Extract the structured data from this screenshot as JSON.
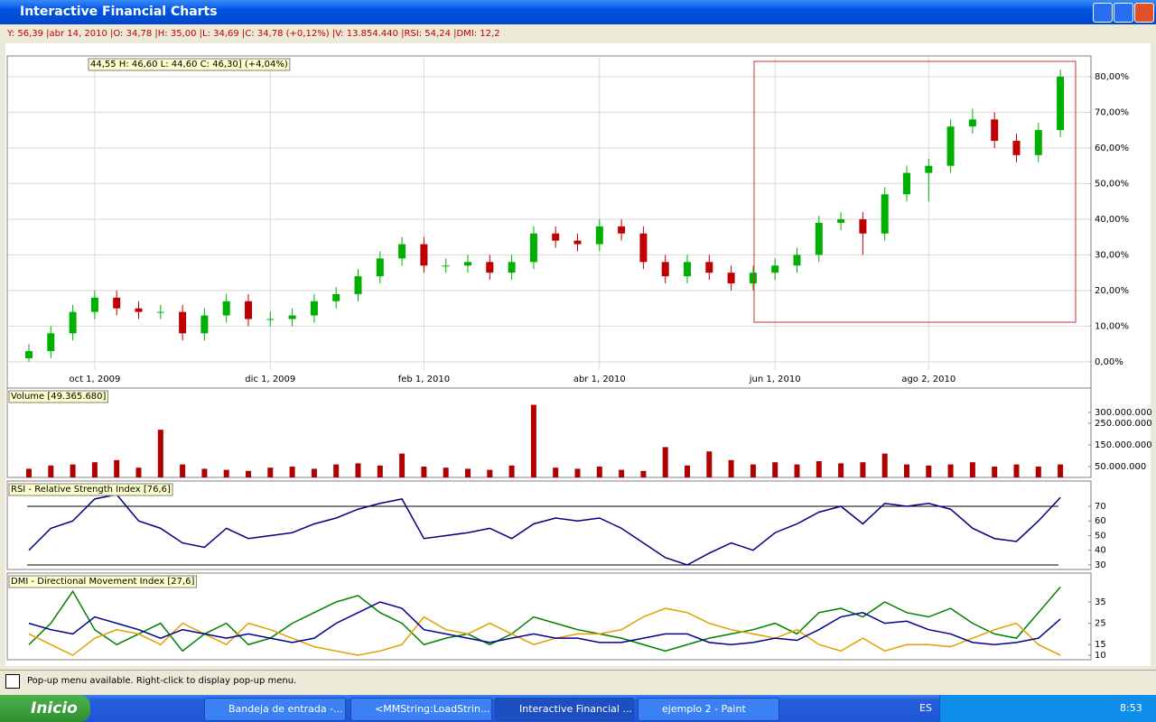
{
  "window": {
    "title": "Interactive Financial Charts",
    "info_line": "Y: 56,39 |abr 14, 2010 |O: 34,78 |H: 35,00 |L: 34,69 |C: 34,78 (+0,12%) |V: 13.854.440 |RSI: 54,24 |DMI: 12,2",
    "status_text": "Pop-up menu available. Right-click to display pop-up menu."
  },
  "taskbar": {
    "start": "Inicio",
    "tasks": [
      "Bandeja de entrada -...",
      "<MMString:LoadStrin...",
      "Interactive Financial ...",
      "ejemplo 2 - Paint"
    ],
    "language": "ES",
    "clock": "8:53"
  },
  "chart_data": [
    {
      "type": "candlestick",
      "title": "44,55  H: 46,60  L: 44,60  C: 46,30] (+4,04%)",
      "categories": [
        null,
        null,
        null,
        "oct 1, 2009",
        null,
        null,
        null,
        null,
        null,
        null,
        null,
        "dic 1, 2009",
        null,
        null,
        null,
        null,
        null,
        null,
        "feb 1, 2010",
        null,
        null,
        null,
        null,
        null,
        null,
        null,
        "abr 1, 2010",
        null,
        null,
        null,
        null,
        null,
        null,
        null,
        "jun 1, 2010",
        null,
        null,
        null,
        null,
        null,
        null,
        "ago 2, 2010",
        null,
        null,
        null,
        null,
        null,
        null
      ],
      "open": [
        1,
        3,
        8,
        14,
        18,
        15,
        14,
        14,
        8,
        13,
        17,
        12,
        12,
        13,
        17,
        19,
        24,
        29,
        33,
        27,
        27,
        28,
        25,
        28,
        36,
        34,
        33,
        38,
        36,
        28,
        24,
        28,
        25,
        22,
        25,
        27,
        30,
        39,
        40,
        36,
        47,
        53,
        55,
        66,
        68,
        62,
        58,
        65
      ],
      "high": [
        5,
        10,
        16,
        20,
        20,
        17,
        16,
        16,
        15,
        19,
        19,
        14,
        15,
        19,
        21,
        26,
        31,
        35,
        35,
        29,
        30,
        30,
        30,
        38,
        38,
        36,
        40,
        40,
        38,
        30,
        30,
        30,
        27,
        27,
        29,
        32,
        41,
        42,
        42,
        49,
        55,
        57,
        68,
        71,
        70,
        64,
        67,
        82
      ],
      "low": [
        0,
        1,
        6,
        12,
        13,
        12,
        12,
        6,
        6,
        11,
        10,
        10,
        10,
        11,
        15,
        17,
        22,
        27,
        25,
        25,
        25,
        23,
        23,
        26,
        32,
        31,
        31,
        34,
        26,
        22,
        22,
        23,
        20,
        20,
        23,
        25,
        28,
        37,
        30,
        34,
        45,
        45,
        53,
        64,
        60,
        56,
        56,
        63
      ],
      "close": [
        3,
        8,
        14,
        18,
        15,
        14,
        14,
        8,
        13,
        17,
        12,
        12,
        13,
        17,
        19,
        24,
        29,
        33,
        27,
        27,
        28,
        25,
        28,
        36,
        34,
        33,
        38,
        36,
        28,
        24,
        28,
        25,
        22,
        25,
        27,
        30,
        39,
        40,
        36,
        47,
        53,
        55,
        66,
        68,
        62,
        58,
        65,
        80
      ],
      "up_color": "#00b000",
      "down_color": "#c00000",
      "ylim": [
        -2.3,
        85.3
      ],
      "yticks": [
        {
          "value": 0,
          "label": "0,00%"
        },
        {
          "value": 10,
          "label": "10,00%"
        },
        {
          "value": 20,
          "label": "20,00%"
        },
        {
          "value": 30,
          "label": "30,00%"
        },
        {
          "value": 40,
          "label": "40,00%"
        },
        {
          "value": 50,
          "label": "50,00%"
        },
        {
          "value": 60,
          "label": "60,00%"
        },
        {
          "value": 70,
          "label": "70,00%"
        },
        {
          "value": 80,
          "label": "80,00%"
        }
      ],
      "grid": true
    },
    {
      "type": "bar",
      "title": "Volume [49.365.680]",
      "color": "#b00000",
      "values": [
        40000000,
        55000000,
        60000000,
        70000000,
        80000000,
        45000000,
        220000000,
        60000000,
        40000000,
        35000000,
        30000000,
        45000000,
        50000000,
        40000000,
        60000000,
        65000000,
        55000000,
        110000000,
        50000000,
        45000000,
        40000000,
        35000000,
        55000000,
        335000000,
        45000000,
        40000000,
        50000000,
        35000000,
        30000000,
        140000000,
        55000000,
        120000000,
        80000000,
        60000000,
        70000000,
        60000000,
        75000000,
        65000000,
        70000000,
        110000000,
        60000000,
        55000000,
        60000000,
        70000000,
        50000000,
        60000000,
        50000000,
        60000000
      ],
      "ylim": [
        0,
        404000000
      ],
      "yticks": [
        {
          "value": 50000000,
          "label": "50.000.000"
        },
        {
          "value": 150000000,
          "label": "150.000.000"
        },
        {
          "value": 250000000,
          "label": "250.000.000"
        },
        {
          "value": 300000000,
          "label": "300.000.000"
        }
      ]
    },
    {
      "type": "line",
      "title": "RSI - Relative Strength Index [76,6]",
      "color": "#000080",
      "values": [
        40,
        55,
        60,
        75,
        78,
        60,
        55,
        45,
        42,
        55,
        48,
        50,
        52,
        58,
        62,
        68,
        72,
        75,
        48,
        50,
        52,
        55,
        48,
        58,
        62,
        60,
        62,
        55,
        45,
        35,
        30,
        38,
        45,
        40,
        52,
        58,
        66,
        70,
        58,
        72,
        70,
        72,
        68,
        55,
        48,
        46,
        60,
        76
      ],
      "reference_lines": [
        30,
        70
      ],
      "ylim": [
        26.9,
        86
      ],
      "yticks": [
        30,
        40,
        50,
        60,
        70
      ]
    },
    {
      "type": "line",
      "title": "DMI - Directional Movement Index [27,6]",
      "series": [
        {
          "color": "#008000",
          "values": [
            15,
            25,
            40,
            22,
            15,
            20,
            25,
            12,
            20,
            25,
            15,
            18,
            25,
            30,
            35,
            38,
            30,
            25,
            15,
            18,
            20,
            15,
            20,
            28,
            25,
            22,
            20,
            18,
            15,
            12,
            15,
            18,
            20,
            22,
            25,
            20,
            30,
            32,
            28,
            35,
            30,
            28,
            32,
            25,
            20,
            18,
            30,
            42
          ]
        },
        {
          "color": "#e0a000",
          "values": [
            20,
            15,
            10,
            18,
            22,
            20,
            15,
            25,
            20,
            15,
            25,
            22,
            18,
            14,
            12,
            10,
            12,
            15,
            28,
            22,
            20,
            25,
            20,
            15,
            18,
            20,
            20,
            22,
            28,
            32,
            30,
            25,
            22,
            20,
            18,
            22,
            15,
            12,
            18,
            12,
            15,
            15,
            14,
            18,
            22,
            25,
            15,
            10
          ]
        },
        {
          "color": "#000090",
          "values": [
            25,
            22,
            20,
            28,
            25,
            22,
            18,
            22,
            20,
            18,
            20,
            18,
            16,
            18,
            25,
            30,
            35,
            32,
            22,
            20,
            18,
            16,
            18,
            20,
            18,
            18,
            16,
            16,
            18,
            20,
            20,
            16,
            15,
            16,
            18,
            17,
            22,
            28,
            30,
            25,
            26,
            22,
            20,
            16,
            15,
            16,
            18,
            27
          ]
        }
      ],
      "ylim": [
        7.9,
        47.7
      ],
      "yticks": [
        10,
        15,
        25,
        35
      ]
    }
  ]
}
